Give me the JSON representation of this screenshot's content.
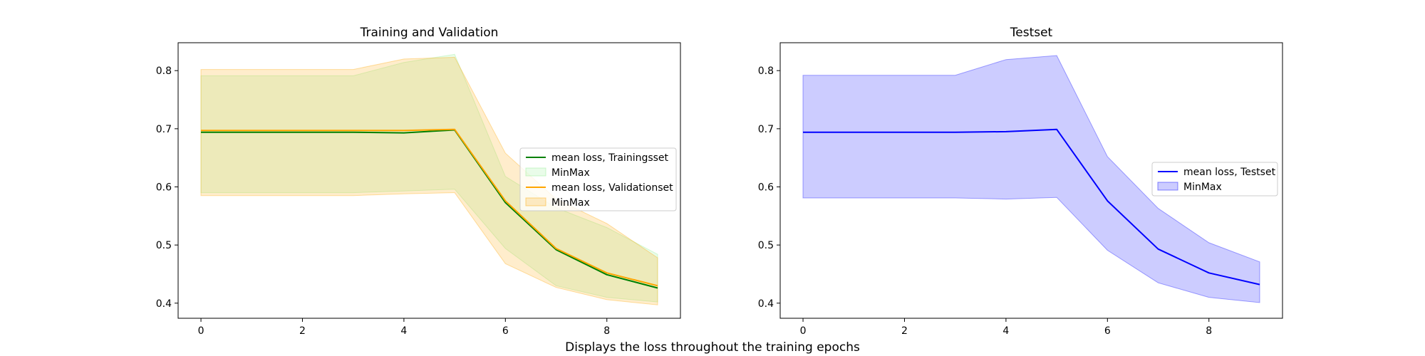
{
  "figure": {
    "caption": "Displays the loss throughout the training epochs"
  },
  "chart_data": [
    {
      "type": "line",
      "title": "Training and Validation",
      "xlabel": "",
      "ylabel": "",
      "xlim": [
        -0.45,
        9.45
      ],
      "ylim": [
        0.374,
        0.848
      ],
      "xticks": [
        0,
        2,
        4,
        6,
        8
      ],
      "yticks": [
        0.4,
        0.5,
        0.6,
        0.7,
        0.8
      ],
      "grid": false,
      "legend_position": "center-right",
      "x": [
        0,
        1,
        2,
        3,
        4,
        5,
        6,
        7,
        8,
        9
      ],
      "series": [
        {
          "name": "mean loss, Trainingsset",
          "band_name": "MinMax",
          "color": "#008000",
          "band_color": "#90ee90",
          "values": [
            0.694,
            0.694,
            0.694,
            0.694,
            0.693,
            0.698,
            0.573,
            0.492,
            0.449,
            0.426
          ],
          "min": [
            0.59,
            0.59,
            0.59,
            0.59,
            0.593,
            0.596,
            0.494,
            0.43,
            0.41,
            0.402
          ],
          "max": [
            0.791,
            0.791,
            0.791,
            0.791,
            0.814,
            0.828,
            0.618,
            0.564,
            0.53,
            0.484
          ]
        },
        {
          "name": "mean loss, Validationset",
          "band_name": "MinMax",
          "color": "#ffa500",
          "band_color": "#ffa500",
          "values": [
            0.697,
            0.697,
            0.697,
            0.697,
            0.697,
            0.699,
            0.576,
            0.494,
            0.452,
            0.43
          ],
          "min": [
            0.585,
            0.585,
            0.585,
            0.585,
            0.588,
            0.59,
            0.468,
            0.427,
            0.406,
            0.397
          ],
          "max": [
            0.802,
            0.802,
            0.802,
            0.802,
            0.82,
            0.823,
            0.658,
            0.579,
            0.537,
            0.478
          ]
        }
      ]
    },
    {
      "type": "line",
      "title": "Testset",
      "xlabel": "",
      "ylabel": "",
      "xlim": [
        -0.45,
        9.45
      ],
      "ylim": [
        0.374,
        0.848
      ],
      "xticks": [
        0,
        2,
        4,
        6,
        8
      ],
      "yticks": [
        0.4,
        0.5,
        0.6,
        0.7,
        0.8
      ],
      "grid": false,
      "legend_position": "center-right",
      "x": [
        0,
        1,
        2,
        3,
        4,
        5,
        6,
        7,
        8,
        9
      ],
      "series": [
        {
          "name": "mean loss, Testset",
          "band_name": "MinMax",
          "color": "#0000ff",
          "band_color": "#0000ff",
          "values": [
            0.694,
            0.694,
            0.694,
            0.694,
            0.695,
            0.699,
            0.576,
            0.493,
            0.452,
            0.432
          ],
          "min": [
            0.581,
            0.581,
            0.581,
            0.581,
            0.579,
            0.582,
            0.491,
            0.435,
            0.41,
            0.401
          ],
          "max": [
            0.792,
            0.792,
            0.792,
            0.792,
            0.819,
            0.826,
            0.652,
            0.563,
            0.504,
            0.471
          ]
        }
      ]
    }
  ]
}
